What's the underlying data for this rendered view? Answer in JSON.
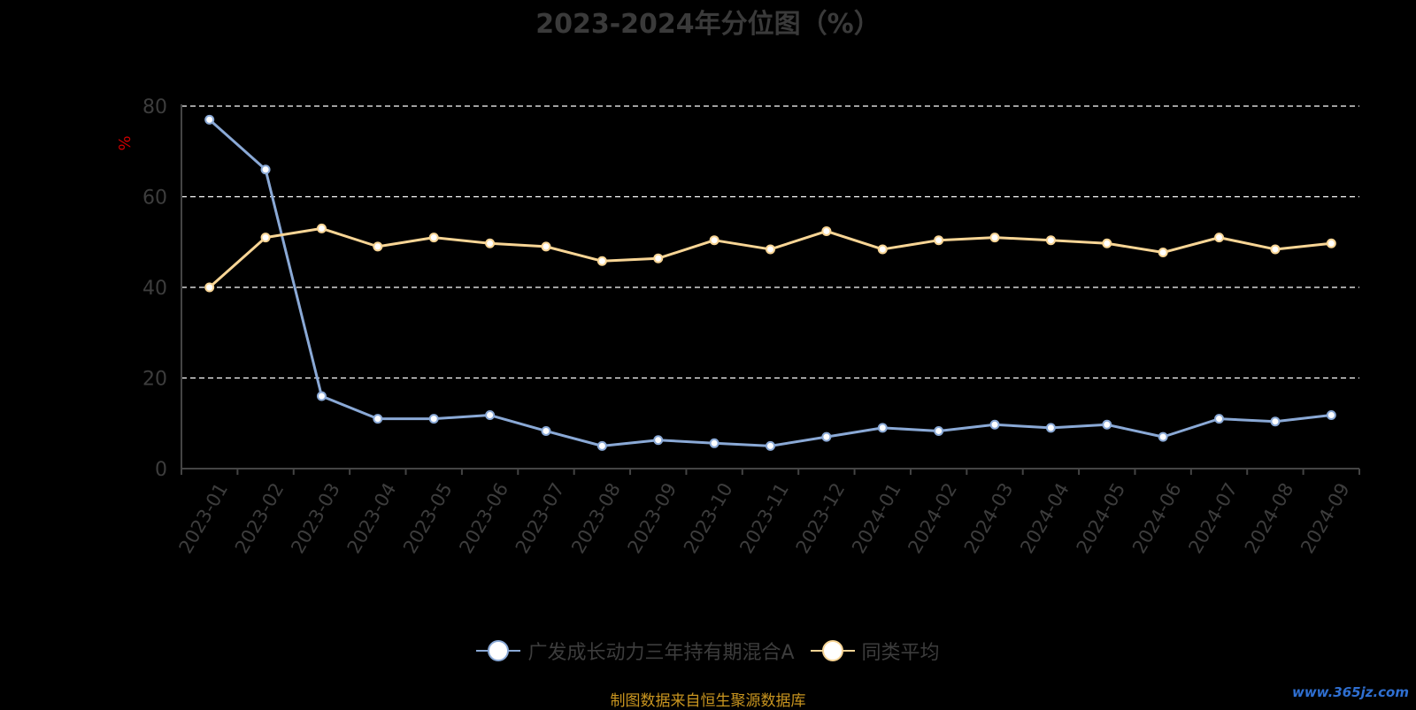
{
  "chart_data": {
    "type": "line",
    "title": "2023-2024年分位图（%）",
    "ylabel": "%",
    "ylim": [
      0,
      80
    ],
    "yticks": [
      0,
      20,
      40,
      60,
      80
    ],
    "grid": "horizontal-dashed",
    "legend_position": "bottom",
    "categories": [
      "2023-01",
      "2023-02",
      "2023-03",
      "2023-04",
      "2023-05",
      "2023-06",
      "2023-07",
      "2023-08",
      "2023-09",
      "2023-10",
      "2023-11",
      "2023-12",
      "2024-01",
      "2024-02",
      "2024-03",
      "2024-04",
      "2024-05",
      "2024-06",
      "2024-07",
      "2024-08",
      "2024-09"
    ],
    "series": [
      {
        "name": "广发成长动力三年持有期混合A",
        "color": "#8aa9d6",
        "values": [
          77,
          66,
          16,
          11,
          11,
          11.8,
          8.3,
          5,
          6.3,
          5.6,
          5,
          7,
          9,
          8.3,
          9.7,
          9,
          9.7,
          7,
          11,
          10.4,
          11.8
        ]
      },
      {
        "name": "同类平均",
        "color": "#f8d595",
        "values": [
          40,
          51,
          53,
          49,
          51,
          49.7,
          49,
          45.8,
          46.4,
          50.4,
          48.4,
          52.4,
          48.4,
          50.4,
          51,
          50.4,
          49.7,
          47.7,
          51,
          48.4,
          49.7
        ]
      }
    ]
  },
  "footer": {
    "source": "制图数据来自恒生聚源数据库",
    "watermark": "www.365jz.com"
  }
}
